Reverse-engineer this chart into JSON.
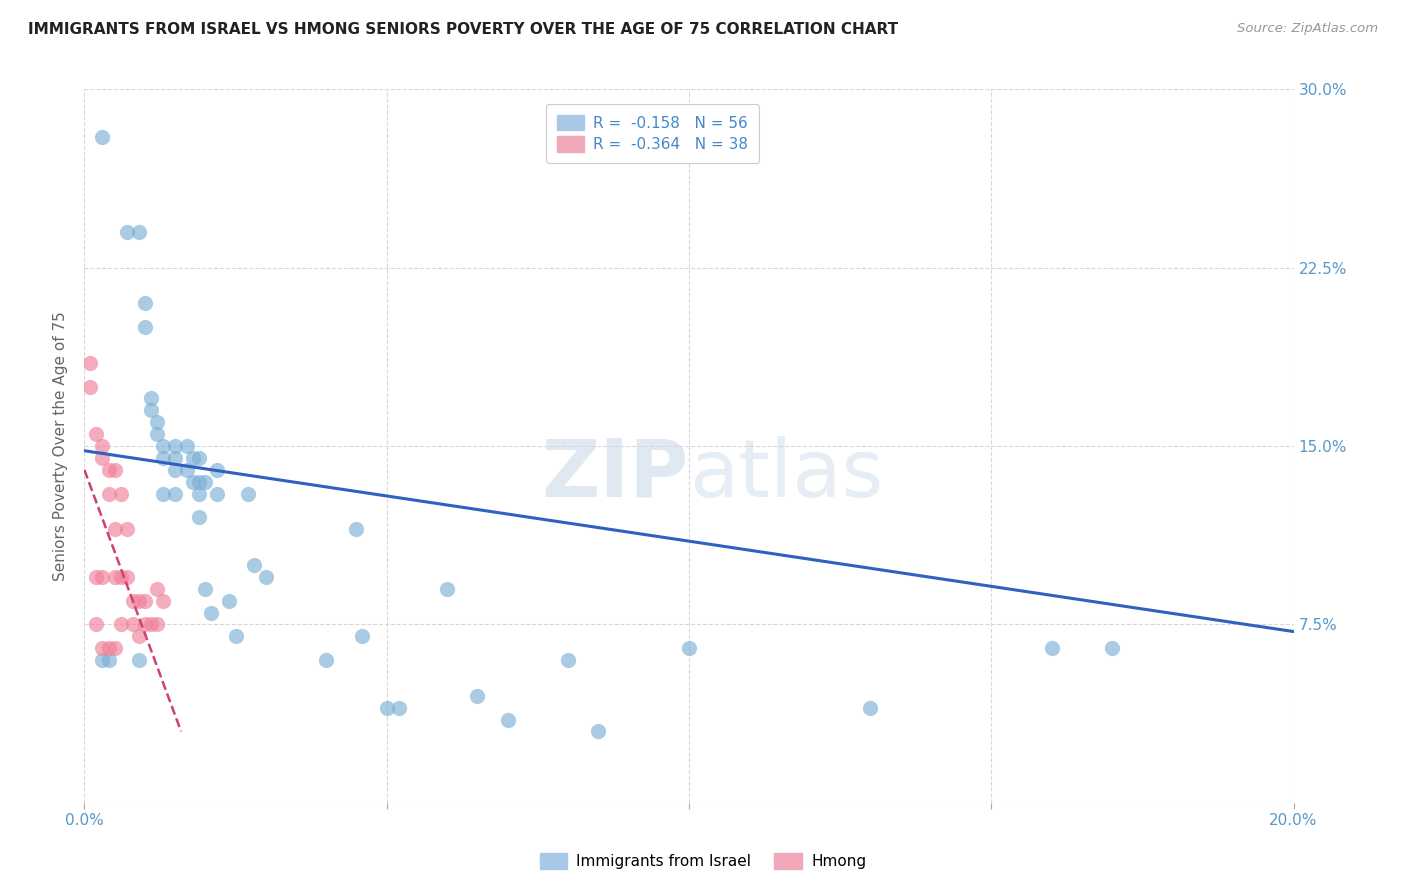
{
  "title": "IMMIGRANTS FROM ISRAEL VS HMONG SENIORS POVERTY OVER THE AGE OF 75 CORRELATION CHART",
  "source": "Source: ZipAtlas.com",
  "ylabel": "Seniors Poverty Over the Age of 75",
  "xlim": [
    0,
    0.2
  ],
  "ylim": [
    0,
    0.3
  ],
  "xticks": [
    0.0,
    0.05,
    0.1,
    0.15,
    0.2
  ],
  "xtick_labels": [
    "0.0%",
    "",
    "",
    "",
    "20.0%"
  ],
  "yticks": [
    0.0,
    0.075,
    0.15,
    0.225,
    0.3
  ],
  "ytick_labels": [
    "",
    "7.5%",
    "15.0%",
    "22.5%",
    "30.0%"
  ],
  "grid_color": "#d8d8d8",
  "background_color": "#ffffff",
  "israel_color": "#7bafd4",
  "hmong_color": "#f08098",
  "israel_line_color": "#3060c0",
  "hmong_line_color": "#d04070",
  "tick_color": "#5599cc",
  "israel_points_x": [
    0.003,
    0.003,
    0.004,
    0.007,
    0.009,
    0.009,
    0.01,
    0.01,
    0.011,
    0.011,
    0.012,
    0.012,
    0.013,
    0.013,
    0.013,
    0.015,
    0.015,
    0.015,
    0.015,
    0.017,
    0.017,
    0.018,
    0.018,
    0.019,
    0.019,
    0.019,
    0.019,
    0.02,
    0.02,
    0.021,
    0.022,
    0.022,
    0.024,
    0.025,
    0.027,
    0.028,
    0.03,
    0.04,
    0.045,
    0.046,
    0.05,
    0.052,
    0.06,
    0.065,
    0.07,
    0.08,
    0.085,
    0.1,
    0.13,
    0.16,
    0.17
  ],
  "israel_points_y": [
    0.28,
    0.06,
    0.06,
    0.24,
    0.24,
    0.06,
    0.21,
    0.2,
    0.17,
    0.165,
    0.16,
    0.155,
    0.15,
    0.145,
    0.13,
    0.15,
    0.145,
    0.14,
    0.13,
    0.15,
    0.14,
    0.145,
    0.135,
    0.145,
    0.135,
    0.13,
    0.12,
    0.135,
    0.09,
    0.08,
    0.14,
    0.13,
    0.085,
    0.07,
    0.13,
    0.1,
    0.095,
    0.06,
    0.115,
    0.07,
    0.04,
    0.04,
    0.09,
    0.045,
    0.035,
    0.06,
    0.03,
    0.065,
    0.04,
    0.065,
    0.065
  ],
  "hmong_points_x": [
    0.001,
    0.001,
    0.002,
    0.002,
    0.002,
    0.003,
    0.003,
    0.003,
    0.003,
    0.004,
    0.004,
    0.004,
    0.005,
    0.005,
    0.005,
    0.005,
    0.006,
    0.006,
    0.006,
    0.007,
    0.007,
    0.008,
    0.008,
    0.009,
    0.009,
    0.01,
    0.01,
    0.011,
    0.012,
    0.012,
    0.013
  ],
  "hmong_points_y": [
    0.185,
    0.175,
    0.155,
    0.095,
    0.075,
    0.15,
    0.145,
    0.095,
    0.065,
    0.14,
    0.13,
    0.065,
    0.14,
    0.115,
    0.095,
    0.065,
    0.13,
    0.095,
    0.075,
    0.115,
    0.095,
    0.085,
    0.075,
    0.085,
    0.07,
    0.085,
    0.075,
    0.075,
    0.09,
    0.075,
    0.085
  ],
  "israel_trendline_x": [
    0.0,
    0.2
  ],
  "israel_trendline_y": [
    0.148,
    0.072
  ],
  "hmong_trendline_x": [
    0.0,
    0.016
  ],
  "hmong_trendline_y": [
    0.14,
    0.03
  ]
}
